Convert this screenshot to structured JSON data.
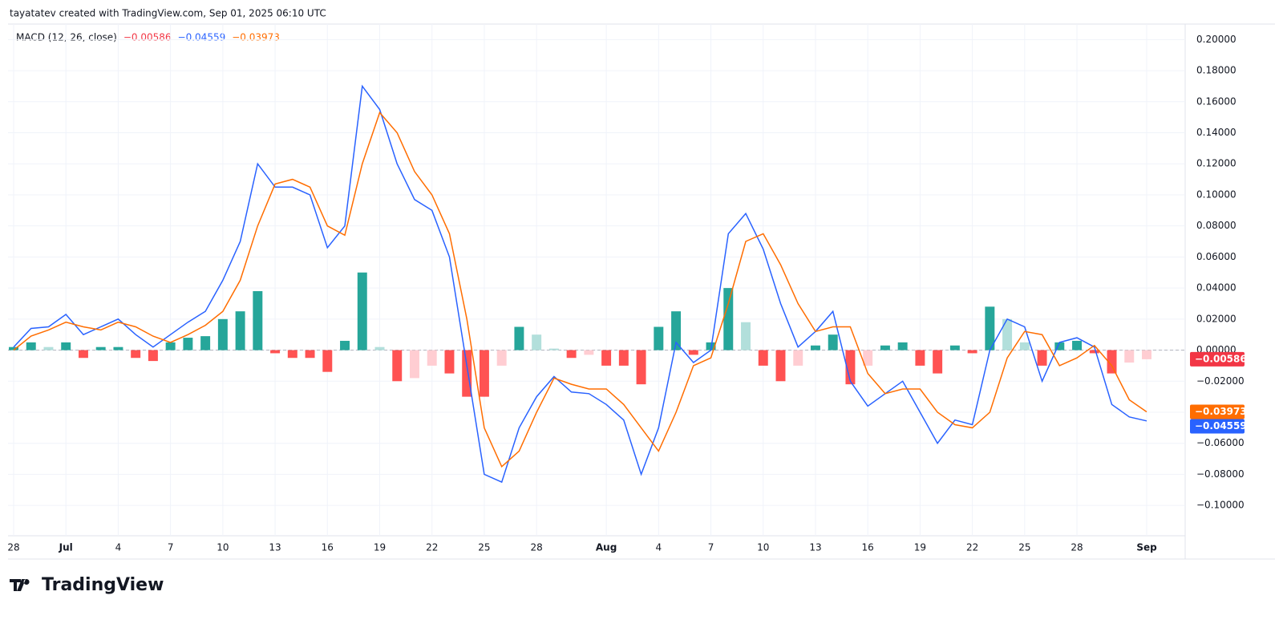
{
  "header": "tayatatev created with TradingView.com, Sep 01, 2025 06:10 UTC",
  "footer": {
    "brand": "TradingView"
  },
  "chart_data": {
    "type": "line",
    "indicator": "MACD (12, 26, close)",
    "categories": [
      "28",
      null,
      null,
      "Jul",
      null,
      null,
      "4",
      null,
      null,
      "7",
      null,
      null,
      "10",
      null,
      null,
      "13",
      null,
      null,
      "16",
      null,
      null,
      "19",
      null,
      null,
      "22",
      null,
      null,
      "25",
      null,
      null,
      "28",
      null,
      null,
      null,
      "Aug",
      null,
      null,
      "4",
      null,
      null,
      "7",
      null,
      null,
      "10",
      null,
      null,
      "13",
      null,
      null,
      "16",
      null,
      null,
      "19",
      null,
      null,
      "22",
      null,
      null,
      "25",
      null,
      null,
      "28",
      null,
      null,
      null,
      "Sep"
    ],
    "histogram": {
      "values": [
        0.002,
        0.005,
        0.002,
        0.005,
        -0.005,
        0.002,
        0.002,
        -0.005,
        -0.007,
        0.005,
        0.008,
        0.009,
        0.02,
        0.025,
        0.038,
        -0.002,
        -0.005,
        -0.005,
        -0.014,
        0.006,
        0.05,
        0.002,
        -0.02,
        -0.018,
        -0.01,
        -0.015,
        -0.03,
        -0.03,
        -0.01,
        0.015,
        0.01,
        0.001,
        -0.005,
        -0.003,
        -0.01,
        -0.01,
        -0.022,
        0.015,
        0.025,
        -0.003,
        0.005,
        0.04,
        0.018,
        -0.01,
        -0.02,
        -0.01,
        0.003,
        0.01,
        -0.022,
        -0.01,
        0.003,
        0.005,
        -0.01,
        -0.015,
        0.003,
        -0.002,
        0.028,
        0.02,
        0.005,
        -0.01,
        0.005,
        0.006,
        -0.002,
        -0.015,
        -0.008,
        -0.00586
      ],
      "last_label": "−0.00586",
      "color": "#f23645",
      "colors": {
        "pos_up": "#26a69a",
        "pos_down": "#b2dfdb",
        "neg_down": "#ff5252",
        "neg_up": "#ffcdd2"
      }
    },
    "series": [
      {
        "color": "#2962ff",
        "last_label": "−0.04559",
        "values": [
          0.002,
          0.014,
          0.015,
          0.023,
          0.01,
          0.015,
          0.02,
          0.01,
          0.002,
          0.01,
          0.018,
          0.025,
          0.045,
          0.07,
          0.12,
          0.105,
          0.105,
          0.1,
          0.066,
          0.08,
          0.17,
          0.155,
          0.12,
          0.097,
          0.09,
          0.06,
          -0.01,
          -0.08,
          -0.085,
          -0.05,
          -0.03,
          -0.017,
          -0.027,
          -0.028,
          -0.035,
          -0.045,
          -0.08,
          -0.05,
          0.005,
          -0.008,
          0.0,
          0.075,
          0.088,
          0.065,
          0.03,
          0.002,
          0.012,
          0.025,
          -0.02,
          -0.036,
          -0.028,
          -0.02,
          -0.04,
          -0.06,
          -0.045,
          -0.048,
          0.0,
          0.02,
          0.015,
          -0.02,
          0.005,
          0.008,
          0.002,
          -0.035,
          -0.043,
          -0.04559
        ]
      },
      {
        "color": "#ff6d00",
        "last_label": "−0.03973",
        "values": [
          0.0,
          0.009,
          0.013,
          0.018,
          0.015,
          0.013,
          0.018,
          0.015,
          0.009,
          0.005,
          0.01,
          0.016,
          0.025,
          0.045,
          0.08,
          0.107,
          0.11,
          0.105,
          0.08,
          0.074,
          0.12,
          0.153,
          0.14,
          0.115,
          0.1,
          0.075,
          0.02,
          -0.05,
          -0.075,
          -0.065,
          -0.04,
          -0.018,
          -0.022,
          -0.025,
          -0.025,
          -0.035,
          -0.05,
          -0.065,
          -0.04,
          -0.01,
          -0.005,
          0.03,
          0.07,
          0.075,
          0.055,
          0.03,
          0.012,
          0.015,
          0.015,
          -0.015,
          -0.028,
          -0.025,
          -0.025,
          -0.04,
          -0.048,
          -0.05,
          -0.04,
          -0.005,
          0.012,
          0.01,
          -0.01,
          -0.005,
          0.003,
          -0.01,
          -0.032,
          -0.03973
        ]
      }
    ],
    "ylim": [
      -0.118,
      0.21
    ],
    "yticks": [
      {
        "value": 0.2,
        "label": "0.20000"
      },
      {
        "value": 0.18,
        "label": "0.18000"
      },
      {
        "value": 0.16,
        "label": "0.16000"
      },
      {
        "value": 0.14,
        "label": "0.14000"
      },
      {
        "value": 0.12,
        "label": "0.12000"
      },
      {
        "value": 0.1,
        "label": "0.10000"
      },
      {
        "value": 0.08,
        "label": "0.08000"
      },
      {
        "value": 0.06,
        "label": "0.06000"
      },
      {
        "value": 0.04,
        "label": "0.04000"
      },
      {
        "value": 0.02,
        "label": "0.02000"
      },
      {
        "value": 0,
        "label": "0.00000"
      },
      {
        "value": -0.02,
        "label": "−0.02000"
      },
      {
        "value": -0.04,
        "label": "−0.04000"
      },
      {
        "value": -0.06,
        "label": "−0.06000"
      },
      {
        "value": -0.08,
        "label": "−0.08000"
      },
      {
        "value": -0.1,
        "label": "−0.10000"
      }
    ],
    "grid": true
  }
}
